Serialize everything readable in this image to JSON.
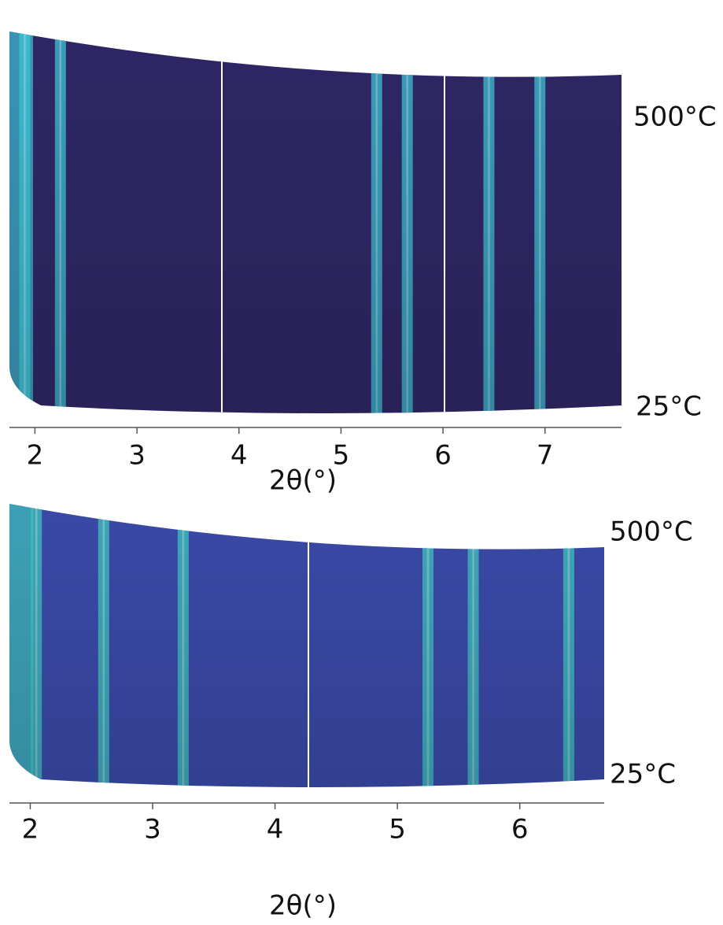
{
  "chart_data": [
    {
      "type": "surface",
      "xlabel": "2θ(°)",
      "label_top": "500°C",
      "label_bottom": "25°C",
      "xlim": [
        1.75,
        7.75
      ],
      "xticks": [
        2,
        3,
        4,
        5,
        6,
        7
      ],
      "peaks": [
        1.9,
        2.25,
        5.35,
        5.65,
        6.45,
        6.95
      ],
      "color": "#2f2766",
      "peak_color": "#3fc6d8"
    },
    {
      "type": "surface",
      "xlabel": "2θ(°)",
      "label_top": "500°C",
      "label_bottom": "25°C",
      "xlim": [
        1.83,
        6.69
      ],
      "xticks": [
        2,
        3,
        4,
        5,
        6
      ],
      "peaks": [
        2.05,
        2.6,
        3.25,
        5.25,
        5.62,
        6.4
      ],
      "color": "#3a4aa8",
      "peak_color": "#40c8c0"
    }
  ]
}
